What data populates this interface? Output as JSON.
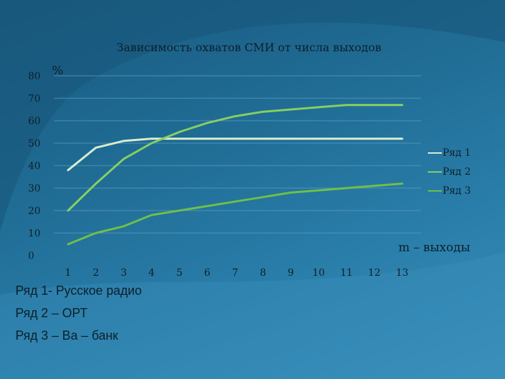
{
  "chart_data": {
    "type": "line",
    "title": "Зависимость охватов СМИ от числа выходов",
    "ylabel": "%",
    "xlabel": "m – выходы",
    "categories": [
      "1",
      "2",
      "3",
      "4",
      "5",
      "6",
      "7",
      "8",
      "9",
      "10",
      "11",
      "12",
      "13"
    ],
    "y_ticks": [
      "0",
      "10",
      "20",
      "30",
      "40",
      "50",
      "60",
      "70",
      "80"
    ],
    "ylim": [
      0,
      80
    ],
    "grid": true,
    "legend_position": "right",
    "series": [
      {
        "name": "Ряд 1",
        "color": "#d8ecd0",
        "values": [
          38,
          48,
          51,
          52,
          52,
          52,
          52,
          52,
          52,
          52,
          52,
          52,
          52
        ]
      },
      {
        "name": "Ряд 2",
        "color": "#86cf63",
        "values": [
          20,
          32,
          43,
          50,
          55,
          59,
          62,
          64,
          65,
          66,
          67,
          67,
          67
        ]
      },
      {
        "name": "Ряд 3",
        "color": "#6fbf4a",
        "values": [
          5,
          10,
          13,
          18,
          20,
          22,
          24,
          26,
          28,
          29,
          30,
          31,
          32
        ]
      }
    ]
  },
  "captions": [
    "Ряд 1- Русское радио",
    "Ряд 2 – ОРТ",
    "Ряд 3 – Ва – банк"
  ]
}
